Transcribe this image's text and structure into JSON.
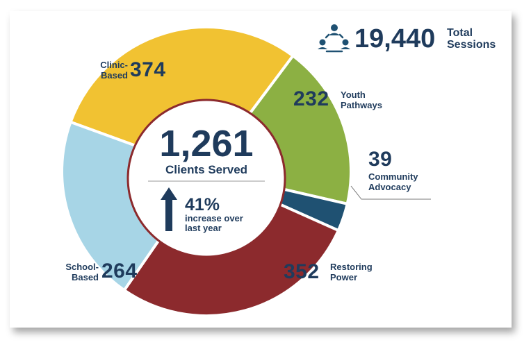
{
  "total_sessions": {
    "value": "19,440",
    "label": "Total\nSessions",
    "icon": "people-network-icon"
  },
  "center": {
    "clients_value": "1,261",
    "clients_label": "Clients Served",
    "increase_value": "41%",
    "increase_label": "increase over\nlast year",
    "icon": "up-arrow-icon"
  },
  "segment_labels": [
    {
      "value": "374",
      "label": "Clinic-\nBased"
    },
    {
      "value": "232",
      "label": "Youth\nPathways"
    },
    {
      "value": "39",
      "label": "Community\nAdvocacy"
    },
    {
      "value": "352",
      "label": "Restoring\nPower"
    },
    {
      "value": "264",
      "label": "School-\nBased"
    }
  ],
  "colors": {
    "clinic": "#f1c232",
    "youth": "#8cb043",
    "community": "#1f5172",
    "restoring": "#8c2a2d",
    "school": "#a7d5e6",
    "text": "#1f3b5c",
    "ring": "#8c2a2d"
  },
  "chart_data": {
    "type": "pie",
    "categories": [
      "Clinic-Based",
      "Youth Pathways",
      "Community Advocacy",
      "Restoring Power",
      "School-Based"
    ],
    "values": [
      374,
      232,
      39,
      352,
      264
    ],
    "total": 1261,
    "legend": "none (direct labels)"
  }
}
